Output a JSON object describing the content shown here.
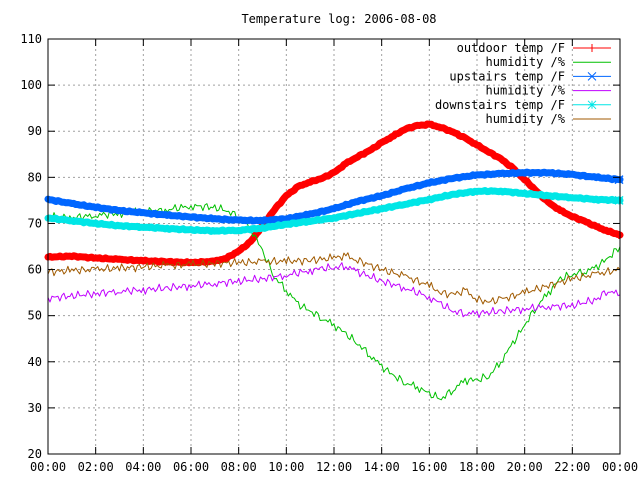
{
  "chart_data": {
    "type": "line",
    "title": "Temperature log: 2006-08-08",
    "xlabel": "",
    "ylabel": "",
    "xlim": [
      0,
      24
    ],
    "ylim": [
      20,
      110
    ],
    "grid": true,
    "legend_position": "top-right",
    "x_ticks": [
      "00:00",
      "02:00",
      "04:00",
      "06:00",
      "08:00",
      "10:00",
      "12:00",
      "14:00",
      "16:00",
      "18:00",
      "20:00",
      "22:00",
      "00:00"
    ],
    "y_ticks": [
      20,
      30,
      40,
      50,
      60,
      70,
      80,
      90,
      100,
      110
    ],
    "series": [
      {
        "name": "outdoor temp /F",
        "color": "#ff0000",
        "marker": "plus",
        "x": [
          0,
          1,
          2,
          3,
          4,
          5,
          6,
          7,
          7.5,
          8,
          8.5,
          9,
          9.5,
          10,
          10.5,
          11,
          11.5,
          12,
          12.5,
          13,
          13.5,
          14,
          14.5,
          15,
          15.5,
          16,
          16.5,
          17,
          17.5,
          18,
          18.5,
          19,
          19.5,
          20,
          20.5,
          21,
          21.5,
          22,
          22.5,
          23,
          23.5,
          24
        ],
        "y": [
          62.7,
          62.9,
          62.5,
          62.2,
          61.9,
          61.7,
          61.5,
          61.8,
          62.5,
          64.0,
          66.0,
          69.5,
          73.0,
          76.0,
          78.0,
          79.0,
          79.8,
          81.0,
          83.0,
          84.5,
          85.8,
          87.5,
          89.0,
          90.5,
          91.2,
          91.5,
          90.8,
          89.8,
          88.5,
          87.0,
          85.5,
          84.0,
          82.0,
          79.5,
          77.0,
          74.5,
          72.8,
          71.5,
          70.5,
          69.3,
          68.3,
          67.5
        ]
      },
      {
        "name": "humidity /%",
        "color": "#00c000",
        "marker": "none",
        "x": [
          0,
          1,
          2,
          3,
          4,
          5,
          6,
          7,
          7.5,
          8,
          8.5,
          9,
          9.5,
          10,
          10.5,
          11,
          11.5,
          12,
          12.5,
          13,
          13.5,
          14,
          14.5,
          15,
          15.5,
          16,
          16.5,
          17,
          17.5,
          18,
          18.5,
          19,
          19.5,
          20,
          20.5,
          21,
          21.5,
          22,
          22.5,
          23,
          23.5,
          24
        ],
        "y": [
          71.5,
          71.2,
          71.8,
          72.2,
          72.5,
          73.0,
          73.8,
          73.5,
          72.8,
          71.5,
          69.0,
          64.0,
          58.5,
          55.5,
          52.5,
          51.0,
          49.5,
          48.0,
          46.0,
          44.0,
          41.5,
          39.0,
          37.0,
          35.5,
          34.5,
          33.0,
          32.0,
          34.0,
          36.0,
          36.0,
          37.0,
          40.0,
          44.0,
          48.0,
          52.0,
          55.0,
          58.0,
          59.0,
          59.5,
          60.5,
          62.5,
          65.0
        ]
      },
      {
        "name": "upstairs temp /F",
        "color": "#0066ff",
        "marker": "cross",
        "x": [
          0,
          1,
          2,
          3,
          4,
          5,
          6,
          7,
          8,
          9,
          10,
          11,
          12,
          13,
          14,
          15,
          16,
          17,
          18,
          19,
          20,
          21,
          22,
          23,
          24
        ],
        "y": [
          75.2,
          74.3,
          73.5,
          72.8,
          72.3,
          71.8,
          71.4,
          71.0,
          70.7,
          70.6,
          71.0,
          72.0,
          73.2,
          74.8,
          76.0,
          77.5,
          78.8,
          79.8,
          80.5,
          80.8,
          81.0,
          81.0,
          80.6,
          80.0,
          79.5
        ]
      },
      {
        "name": "humidity /%",
        "color": "#c000ff",
        "marker": "none",
        "x": [
          0,
          1,
          2,
          3,
          4,
          5,
          6,
          7,
          8,
          9,
          10,
          11,
          11.5,
          12,
          12.5,
          13,
          14,
          15,
          16,
          16.5,
          17,
          17.5,
          18,
          19,
          20,
          21,
          22,
          23,
          23.5,
          24
        ],
        "y": [
          53.8,
          54.3,
          54.8,
          55.3,
          55.6,
          56.0,
          56.5,
          57.0,
          57.5,
          58.0,
          58.8,
          59.8,
          60.2,
          60.5,
          60.8,
          59.5,
          57.5,
          56.0,
          54.0,
          52.5,
          51.0,
          50.5,
          50.5,
          51.0,
          51.5,
          52.0,
          52.2,
          53.5,
          55.5,
          54.5
        ]
      },
      {
        "name": "humidity /%",
        "color": "#a05a00",
        "marker": "none",
        "x": [
          0,
          1,
          2,
          3,
          4,
          5,
          6,
          7,
          8,
          9,
          10,
          11,
          12,
          12.5,
          13,
          14,
          15,
          16,
          16.5,
          17,
          17.5,
          18,
          18.5,
          19,
          20,
          21,
          22,
          23,
          24
        ],
        "y": [
          59.5,
          59.8,
          60.0,
          60.3,
          60.6,
          60.9,
          61.1,
          61.3,
          61.5,
          61.7,
          61.8,
          62.0,
          62.5,
          63.0,
          62.0,
          60.0,
          58.5,
          56.5,
          55.0,
          54.5,
          55.5,
          53.5,
          53.0,
          53.5,
          55.0,
          56.5,
          58.0,
          59.0,
          60.0
        ]
      },
      {
        "name": "downstairs temp /F",
        "color": "#00e6e6",
        "marker": "star",
        "x": [
          0,
          1,
          2,
          3,
          4,
          5,
          6,
          7,
          8,
          9,
          10,
          11,
          12,
          13,
          14,
          15,
          16,
          17,
          18,
          19,
          20,
          21,
          22,
          23,
          24
        ],
        "y": [
          71.2,
          70.6,
          70.0,
          69.5,
          69.2,
          68.9,
          68.6,
          68.4,
          68.5,
          69.0,
          69.8,
          70.5,
          71.2,
          72.2,
          73.2,
          74.2,
          75.2,
          76.3,
          77.0,
          77.0,
          76.5,
          76.0,
          75.6,
          75.2,
          75.0
        ]
      }
    ],
    "legend_order": [
      0,
      1,
      2,
      3,
      5,
      4
    ]
  }
}
